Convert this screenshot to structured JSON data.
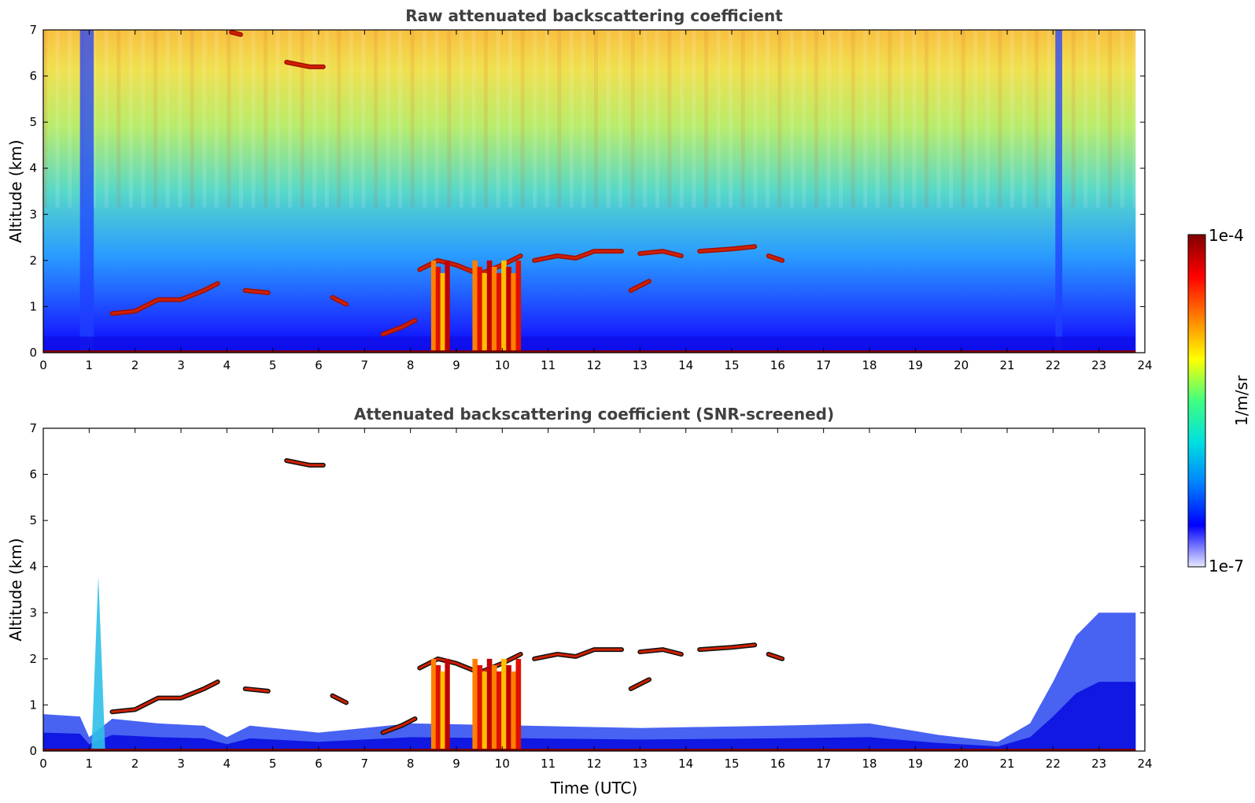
{
  "chart_data": [
    {
      "type": "heatmap",
      "title": "Raw attenuated backscattering coefficient",
      "xlabel": "",
      "ylabel": "Altitude (km)",
      "xlim": [
        0,
        24
      ],
      "ylim": [
        0,
        7
      ],
      "xticks": [
        "0",
        "1",
        "2",
        "3",
        "4",
        "5",
        "6",
        "7",
        "8",
        "9",
        "10",
        "11",
        "12",
        "13",
        "14",
        "15",
        "16",
        "17",
        "18",
        "19",
        "20",
        "21",
        "22",
        "23",
        "24"
      ],
      "yticks": [
        "0",
        "1",
        "2",
        "3",
        "4",
        "5",
        "6",
        "7"
      ],
      "screened": false,
      "features": [
        {
          "kind": "cloud_layer",
          "points": [
            [
              1.5,
              0.85
            ],
            [
              2.0,
              0.9
            ],
            [
              2.5,
              1.15
            ],
            [
              3.0,
              1.15
            ],
            [
              3.5,
              1.35
            ],
            [
              3.8,
              1.5
            ]
          ]
        },
        {
          "kind": "cloud_layer",
          "points": [
            [
              4.4,
              1.35
            ],
            [
              4.9,
              1.3
            ]
          ]
        },
        {
          "kind": "cloud_layer",
          "points": [
            [
              5.3,
              6.3
            ],
            [
              5.8,
              6.2
            ],
            [
              6.1,
              6.2
            ]
          ]
        },
        {
          "kind": "cloud_layer",
          "points": [
            [
              4.1,
              6.95
            ],
            [
              4.3,
              6.9
            ]
          ]
        },
        {
          "kind": "cloud_layer",
          "points": [
            [
              6.3,
              1.2
            ],
            [
              6.6,
              1.05
            ]
          ]
        },
        {
          "kind": "cloud_layer",
          "points": [
            [
              7.4,
              0.4
            ],
            [
              7.8,
              0.55
            ],
            [
              8.1,
              0.7
            ]
          ]
        },
        {
          "kind": "cloud_layer",
          "points": [
            [
              8.2,
              1.8
            ],
            [
              8.6,
              2.0
            ],
            [
              9.0,
              1.9
            ],
            [
              9.5,
              1.7
            ],
            [
              10.0,
              1.9
            ],
            [
              10.4,
              2.1
            ]
          ]
        },
        {
          "kind": "cloud_layer",
          "points": [
            [
              10.7,
              2.0
            ],
            [
              11.2,
              2.1
            ],
            [
              11.6,
              2.05
            ],
            [
              12.0,
              2.2
            ],
            [
              12.6,
              2.2
            ]
          ]
        },
        {
          "kind": "cloud_layer",
          "points": [
            [
              13.0,
              2.15
            ],
            [
              13.5,
              2.2
            ],
            [
              13.9,
              2.1
            ]
          ]
        },
        {
          "kind": "cloud_layer",
          "points": [
            [
              12.8,
              1.35
            ],
            [
              13.2,
              1.55
            ]
          ]
        },
        {
          "kind": "cloud_layer",
          "points": [
            [
              14.3,
              2.2
            ],
            [
              15.0,
              2.25
            ],
            [
              15.5,
              2.3
            ]
          ]
        },
        {
          "kind": "cloud_layer",
          "points": [
            [
              15.8,
              2.1
            ],
            [
              16.1,
              2.0
            ]
          ]
        },
        {
          "kind": "convective_column",
          "x0": 8.45,
          "x1": 8.85,
          "top": 2.0
        },
        {
          "kind": "convective_column",
          "x0": 9.35,
          "x1": 10.4,
          "top": 2.0
        },
        {
          "kind": "ground_layer",
          "x0": 0,
          "x1": 23.8,
          "top": 0.05
        }
      ]
    },
    {
      "type": "heatmap",
      "title": "Attenuated backscattering coefficient (SNR-screened)",
      "xlabel": "Time (UTC)",
      "ylabel": "Altitude (km)",
      "xlim": [
        0,
        24
      ],
      "ylim": [
        0,
        7
      ],
      "xticks": [
        "0",
        "1",
        "2",
        "3",
        "4",
        "5",
        "6",
        "7",
        "8",
        "9",
        "10",
        "11",
        "12",
        "13",
        "14",
        "15",
        "16",
        "17",
        "18",
        "19",
        "20",
        "21",
        "22",
        "23",
        "24"
      ],
      "yticks": [
        "0",
        "1",
        "2",
        "3",
        "4",
        "5",
        "6",
        "7"
      ],
      "screened": true,
      "features": [
        {
          "kind": "boundary_layer",
          "points": [
            [
              0,
              0.8
            ],
            [
              0.8,
              0.75
            ],
            [
              1.0,
              0.3
            ],
            [
              1.5,
              0.7
            ],
            [
              2.5,
              0.6
            ],
            [
              3.5,
              0.55
            ],
            [
              4.0,
              0.3
            ],
            [
              4.5,
              0.55
            ],
            [
              6.0,
              0.4
            ],
            [
              8.0,
              0.6
            ],
            [
              10.5,
              0.55
            ],
            [
              13.0,
              0.5
            ],
            [
              16.0,
              0.55
            ],
            [
              18.0,
              0.6
            ],
            [
              19.5,
              0.35
            ],
            [
              20.8,
              0.2
            ],
            [
              21.5,
              0.6
            ],
            [
              22.0,
              1.5
            ],
            [
              22.5,
              2.5
            ],
            [
              23.0,
              3.0
            ],
            [
              23.8,
              3.0
            ]
          ]
        },
        {
          "kind": "aerosol_plume",
          "x0": 1.05,
          "x1": 1.35,
          "top": 3.8
        },
        {
          "kind": "cloud_layer",
          "points": [
            [
              1.5,
              0.85
            ],
            [
              2.0,
              0.9
            ],
            [
              2.5,
              1.15
            ],
            [
              3.0,
              1.15
            ],
            [
              3.5,
              1.35
            ],
            [
              3.8,
              1.5
            ]
          ]
        },
        {
          "kind": "cloud_layer",
          "points": [
            [
              4.4,
              1.35
            ],
            [
              4.9,
              1.3
            ]
          ]
        },
        {
          "kind": "cloud_layer",
          "points": [
            [
              5.3,
              6.3
            ],
            [
              5.8,
              6.2
            ],
            [
              6.1,
              6.2
            ]
          ]
        },
        {
          "kind": "cloud_layer",
          "points": [
            [
              6.3,
              1.2
            ],
            [
              6.6,
              1.05
            ]
          ]
        },
        {
          "kind": "cloud_layer",
          "points": [
            [
              7.4,
              0.4
            ],
            [
              7.8,
              0.55
            ],
            [
              8.1,
              0.7
            ]
          ]
        },
        {
          "kind": "cloud_layer",
          "points": [
            [
              8.2,
              1.8
            ],
            [
              8.6,
              2.0
            ],
            [
              9.0,
              1.9
            ],
            [
              9.5,
              1.7
            ],
            [
              10.0,
              1.9
            ],
            [
              10.4,
              2.1
            ]
          ]
        },
        {
          "kind": "cloud_layer",
          "points": [
            [
              10.7,
              2.0
            ],
            [
              11.2,
              2.1
            ],
            [
              11.6,
              2.05
            ],
            [
              12.0,
              2.2
            ],
            [
              12.6,
              2.2
            ]
          ]
        },
        {
          "kind": "cloud_layer",
          "points": [
            [
              13.0,
              2.15
            ],
            [
              13.5,
              2.2
            ],
            [
              13.9,
              2.1
            ]
          ]
        },
        {
          "kind": "cloud_layer",
          "points": [
            [
              12.8,
              1.35
            ],
            [
              13.2,
              1.55
            ]
          ]
        },
        {
          "kind": "cloud_layer",
          "points": [
            [
              14.3,
              2.2
            ],
            [
              15.0,
              2.25
            ],
            [
              15.5,
              2.3
            ]
          ]
        },
        {
          "kind": "cloud_layer",
          "points": [
            [
              15.8,
              2.1
            ],
            [
              16.1,
              2.0
            ]
          ]
        },
        {
          "kind": "convective_column",
          "x0": 8.45,
          "x1": 8.85,
          "top": 2.0
        },
        {
          "kind": "convective_column",
          "x0": 9.35,
          "x1": 10.4,
          "top": 2.0
        },
        {
          "kind": "ground_layer",
          "x0": 0,
          "x1": 23.8,
          "top": 0.05
        }
      ]
    }
  ],
  "colorbar": {
    "label": "1/m/sr",
    "max_label": "1e-4",
    "min_label": "1e-7",
    "scale": "log",
    "colors": [
      "#e8e8ff",
      "#0000ff",
      "#0080ff",
      "#00e0e0",
      "#40ff80",
      "#ffff00",
      "#ff8000",
      "#ff0000",
      "#800000"
    ]
  }
}
